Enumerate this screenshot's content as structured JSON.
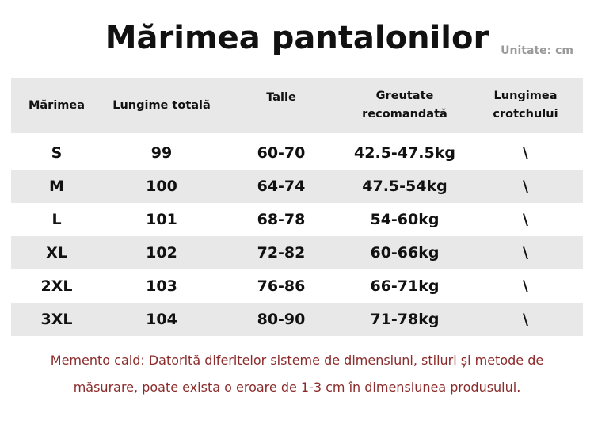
{
  "title": "Mărimea pantalonilor",
  "unit": "Unitate: cm",
  "table": {
    "headers": [
      "Mărimea",
      "Lungime totală",
      "Talie",
      "Greutate recomandată",
      "Lungimea crotchului"
    ],
    "rows": [
      [
        "S",
        "99",
        "60-70",
        "42.5-47.5kg",
        "\\"
      ],
      [
        "M",
        "100",
        "64-74",
        "47.5-54kg",
        "\\"
      ],
      [
        "L",
        "101",
        "68-78",
        "54-60kg",
        "\\"
      ],
      [
        "XL",
        "102",
        "72-82",
        "60-66kg",
        "\\"
      ],
      [
        "2XL",
        "103",
        "76-86",
        "66-71kg",
        "\\"
      ],
      [
        "3XL",
        "104",
        "80-90",
        "71-78kg",
        "\\"
      ]
    ]
  },
  "note": {
    "line1": "Memento cald: Datorită diferitelor sisteme de dimensiuni, stiluri și metode de",
    "line2": "măsurare, poate exista o eroare de 1-3 cm în dimensiunea produsului."
  },
  "colors": {
    "header_background": "#e8e8e8",
    "stripe_background": "#e8e8e8",
    "note_text": "#8b2a2a",
    "unit_text": "#9a9a9a"
  }
}
